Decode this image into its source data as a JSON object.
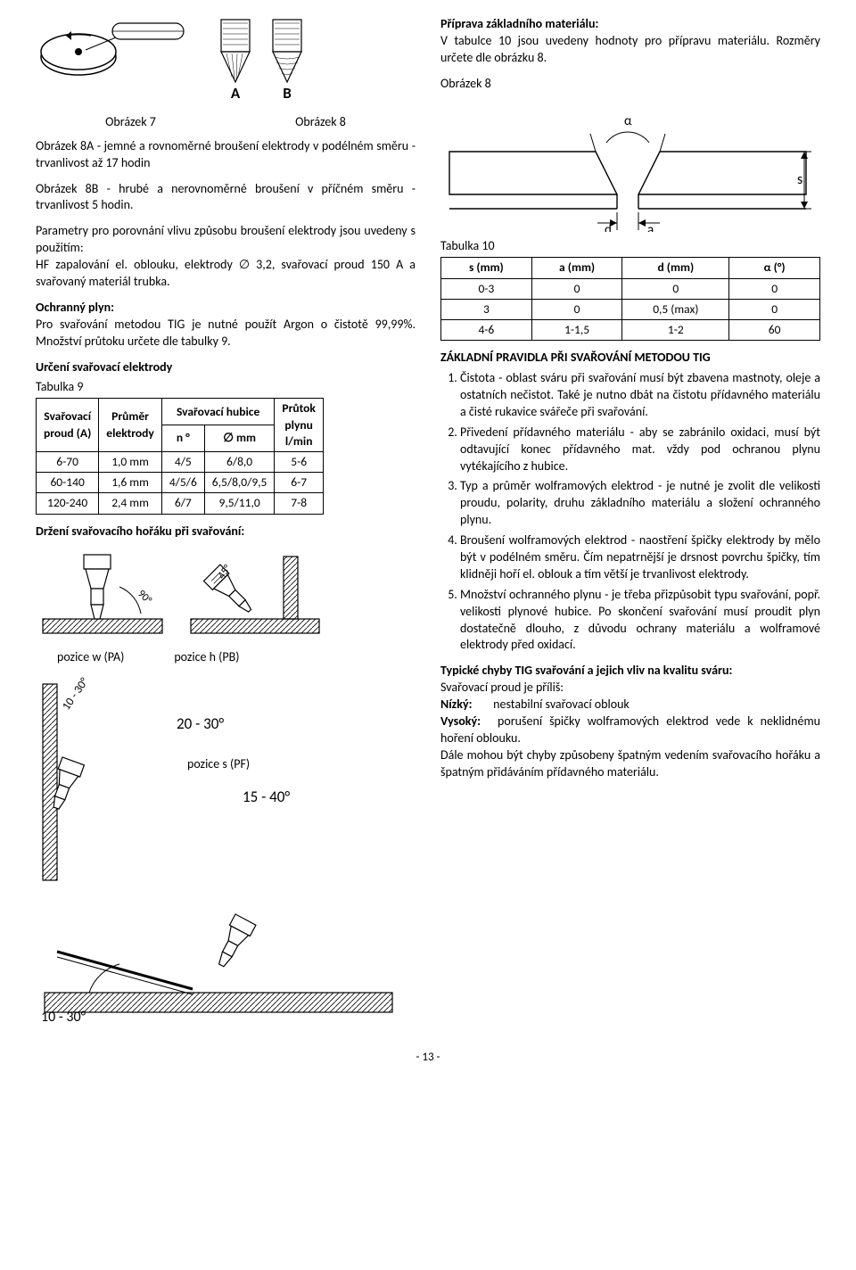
{
  "left": {
    "fig7_label": "Obrázek 7",
    "fig8_label": "Obrázek 8",
    "ab_labels": "A  B",
    "para_8a": "Obrázek 8A - jemné a rovnoměrné broušení elektrody v podélném směru - trvanlivost až 17 hodin",
    "para_8b": "Obrázek 8B - hrubé a nerovnoměrné broušení v příčném směru - trvanlivost 5 hodin.",
    "para_params": "Parametry pro porovnání vlivu způsobu broušení elektrody jsou uvedeny s použitím:",
    "para_params2": "HF zapalování el. oblouku, elektrody ∅ 3,2, svařovací proud 150 A a svařovaný materiál trubka.",
    "gas_head": "Ochranný plyn:",
    "gas_body": "Pro svařování metodou TIG je nutné použít Argon o čistotě 99,99%. Množství průtoku určete dle tabulky 9.",
    "elec_head": "Určení svařovací elektrody",
    "tab9_label": "Tabulka 9",
    "tab9": {
      "cols": [
        "Svařovací\nproud (A)",
        "Průměr\nelektrody",
        "Svařovací hubice",
        "Průtok\nplynu\nl/min"
      ],
      "subcols": [
        "n °",
        "∅ mm"
      ],
      "rows": [
        [
          "6-70",
          "1,0 mm",
          "4/5",
          "6/8,0",
          "5-6"
        ],
        [
          "60-140",
          "1,6 mm",
          "4/5/6",
          "6,5/8,0/9,5",
          "6-7"
        ],
        [
          "120-240",
          "2,4 mm",
          "6/7",
          "9,5/11,0",
          "7-8"
        ]
      ]
    },
    "torch_head": "Držení svařovacího hořáku při svařování:",
    "pos_w": "pozice w (PA)",
    "pos_h": "pozice h (PB)",
    "pos_s": "pozice s (PF)",
    "a90": "90°",
    "a45": "45°",
    "a10_30": "10 - 30°",
    "a20_30": "20 - 30°",
    "a15_40": "15 - 40°",
    "a10_30b": "10 - 30°"
  },
  "right": {
    "prep_head": "Příprava základního materiálu:",
    "prep_body": "V tabulce 10 jsou uvedeny hodnoty pro přípravu materiálu. Rozměry určete dle obrázku 8.",
    "fig8_label": "Obrázek 8",
    "diag_alpha": "α",
    "diag_d": "d",
    "diag_a": "a",
    "diag_s": "s",
    "tab10_label": "Tabulka 10",
    "tab10": {
      "cols": [
        "s (mm)",
        "a (mm)",
        "d (mm)",
        "α (°)"
      ],
      "rows": [
        [
          "0-3",
          "0",
          "0",
          "0"
        ],
        [
          "3",
          "0",
          "0,5 (max)",
          "0"
        ],
        [
          "4-6",
          "1-1,5",
          "1-2",
          "60"
        ]
      ]
    },
    "rules_head": "ZÁKLADNÍ PRAVIDLA PŘI SVAŘOVÁNÍ METODOU TIG",
    "rules": [
      "Čistota - oblast sváru při svařování musí být zbavena mastnoty, oleje a ostatních nečistot. Také je nutno dbát na čistotu přídavného materiálu a čisté rukavice svářeče při svařování.",
      "Přivedení přídavného materiálu - aby se zabránilo oxidaci, musí být odtavující konec přídavného mat. vždy pod ochranou plynu vytékajícího z hubice.",
      "Typ a průměr wolframových elektrod - je nutné je zvolit dle velikosti proudu, polarity, druhu základního materiálu a složení ochranného plynu.",
      "Broušení wolframových elektrod - naostření špičky elektrody by mělo být v podélném směru. Čím nepatrnější je drsnost povrchu špičky, tím klidněji hoří el. oblouk a tím větší je trvanlivost elektrody.",
      "Množství ochranného plynu - je třeba přizpůsobit typu svařování, popř. velikosti plynové hubice. Po skončení svařování musí proudit plyn dostatečně dlouho, z důvodu ochrany materiálu a wolframové elektrody před oxidací."
    ],
    "defects_head": "Typické chyby TIG svařování a jejich vliv na kvalitu sváru:",
    "defects_intro": "Svařovací proud je příliš:",
    "defect_low_label": "Nízký:",
    "defect_low": "nestabilní svařovací oblouk",
    "defect_high_label": "Vysoký:",
    "defect_high": "porušení špičky wolframových elektrod vede k neklidnému hoření oblouku.",
    "defects_tail": "Dále mohou být chyby způsobeny špatným vedením svařovacího hořáku a špatným přidáváním přídavného materiálu."
  },
  "page_num": "- 13 -"
}
